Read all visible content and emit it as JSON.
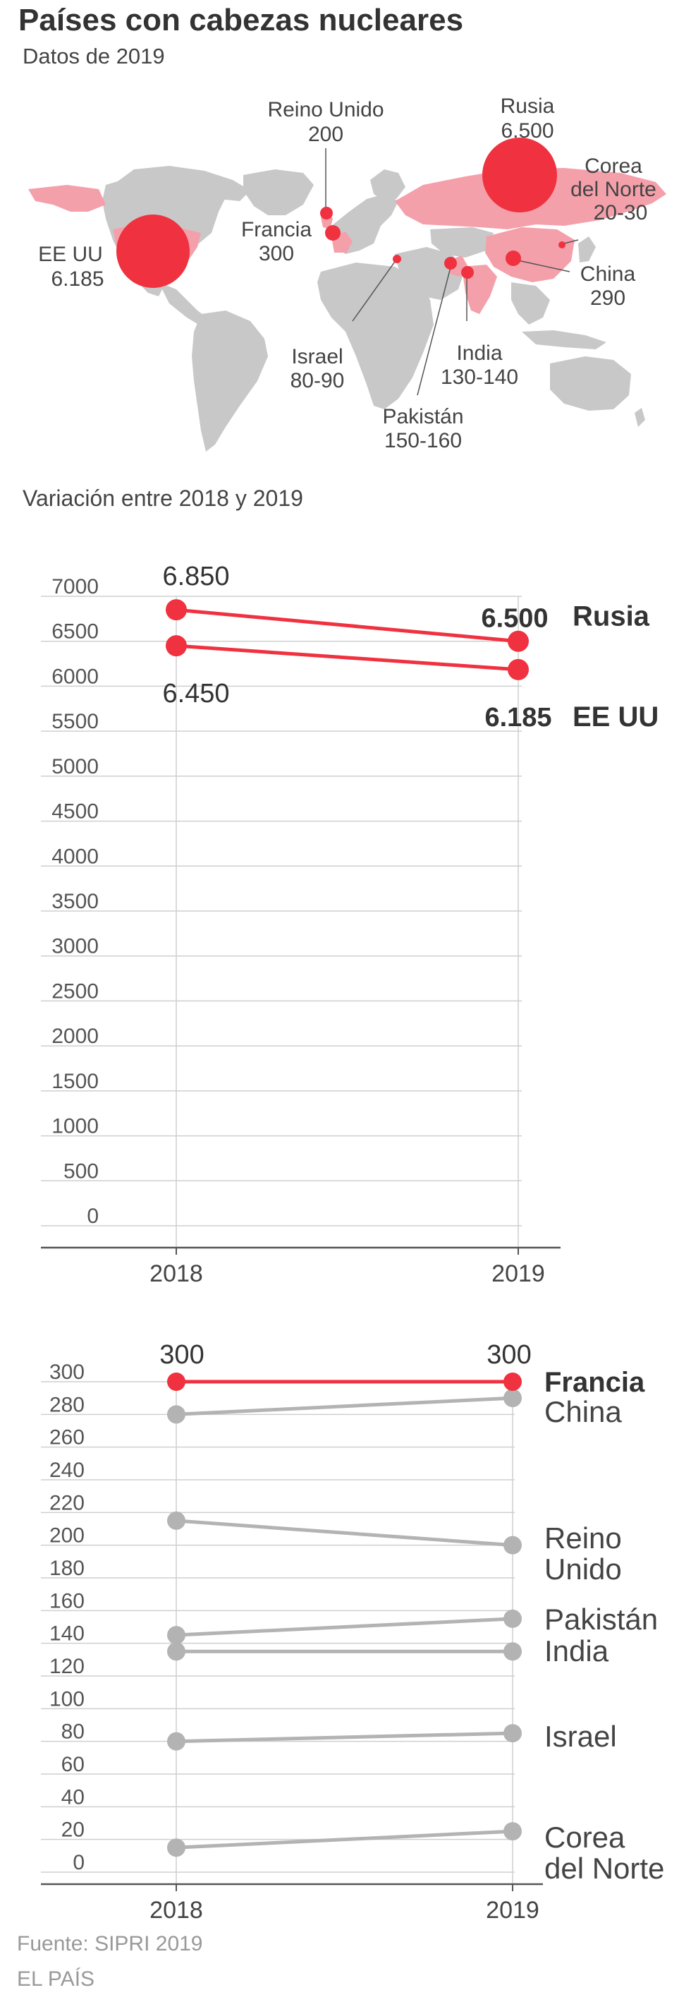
{
  "header": {
    "title": "Países con cabezas nucleares",
    "subtitle": "Datos de 2019"
  },
  "map": {
    "labels": [
      {
        "id": "eeuu",
        "line1": "EE UU",
        "line2": "6.185"
      },
      {
        "id": "reino",
        "line1": "Reino Unido",
        "line2": "200"
      },
      {
        "id": "francia",
        "line1": "Francia",
        "line2": "300"
      },
      {
        "id": "rusia",
        "line1": "Rusia",
        "line2": "6.500"
      },
      {
        "id": "corea",
        "line1": "Corea",
        "line2": "del Norte",
        "line3": "20-30"
      },
      {
        "id": "china",
        "line1": "China",
        "line2": "290"
      },
      {
        "id": "israel",
        "line1": "Israel",
        "line2": "80-90"
      },
      {
        "id": "india",
        "line1": "India",
        "line2": "130-140"
      },
      {
        "id": "pakistan",
        "line1": "Pakistán",
        "line2": "150-160"
      }
    ],
    "colors": {
      "land": "#c8c8c8",
      "nuclear_land": "#f4a0ab",
      "bubble": "#f0313f"
    }
  },
  "section_label": "Variación entre 2018 y 2019",
  "chart_data": [
    {
      "type": "line",
      "x": [
        "2018",
        "2019"
      ],
      "ylim": [
        0,
        7000
      ],
      "yticks": [
        "7000",
        "6500",
        "6000",
        "5500",
        "5000",
        "4500",
        "4000",
        "3500",
        "3000",
        "2500",
        "2000",
        "1500",
        "1000",
        "500",
        "0"
      ],
      "series": [
        {
          "name": "Rusia",
          "values": [
            6850,
            6500
          ],
          "label_2018": "6.850",
          "label_2019": "6.500",
          "color": "#f0313f"
        },
        {
          "name": "EE UU",
          "values": [
            6450,
            6185
          ],
          "label_2018": "6.450",
          "label_2019": "6.185",
          "color": "#f0313f"
        }
      ]
    },
    {
      "type": "line",
      "x": [
        "2018",
        "2019"
      ],
      "ylim": [
        0,
        300
      ],
      "yticks": [
        "300",
        "280",
        "260",
        "240",
        "220",
        "200",
        "180",
        "160",
        "140",
        "120",
        "100",
        "80",
        "60",
        "40",
        "20",
        "0"
      ],
      "series": [
        {
          "name": "Francia",
          "values": [
            300,
            300
          ],
          "label_2018": "300",
          "label_2019": "300",
          "color": "#f0313f"
        },
        {
          "name": "China",
          "values": [
            280,
            290
          ],
          "color": "#b3b3b3"
        },
        {
          "name": "Reino Unido",
          "values": [
            215,
            200
          ],
          "color": "#b3b3b3"
        },
        {
          "name": "Pakistán",
          "values": [
            145,
            155
          ],
          "color": "#b3b3b3"
        },
        {
          "name": "India",
          "values": [
            135,
            135
          ],
          "color": "#b3b3b3"
        },
        {
          "name": "Israel",
          "values": [
            80,
            85
          ],
          "color": "#b3b3b3"
        },
        {
          "name": "Corea del Norte",
          "values": [
            15,
            25
          ],
          "color": "#b3b3b3"
        }
      ]
    }
  ],
  "footer": {
    "source": "Fuente: SIPRI 2019",
    "brand": "EL PAÍS"
  }
}
